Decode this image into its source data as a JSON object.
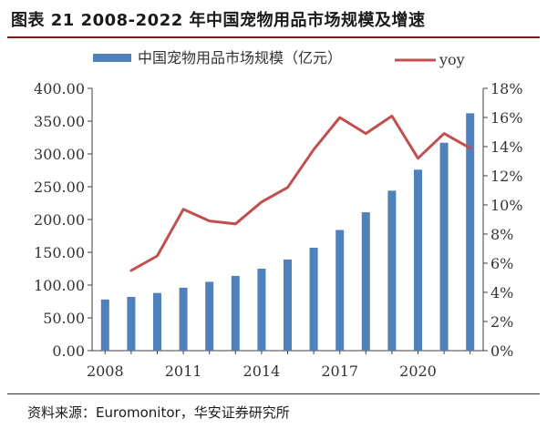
{
  "figure": {
    "title": "图表 21 2008-2022 年中国宠物用品市场规模及增速",
    "source": "资料来源：Euromonitor，华安证券研究所"
  },
  "colors": {
    "bar": "#4f81bd",
    "line": "#c0504d",
    "axis": "#404040",
    "rule": "#7a1f1f"
  },
  "chart_data": {
    "type": "bar",
    "x": [
      2008,
      2009,
      2010,
      2011,
      2012,
      2013,
      2014,
      2015,
      2016,
      2017,
      2018,
      2019,
      2020,
      2021,
      2022
    ],
    "series": [
      {
        "name": "中国宠物用品市场规模（亿元）",
        "type": "bar",
        "axis": "left",
        "values": [
          78,
          82,
          88,
          96,
          105,
          114,
          125,
          139,
          157,
          184,
          211,
          244,
          276,
          317,
          362
        ]
      },
      {
        "name": "yoy",
        "type": "line",
        "axis": "right",
        "values": [
          null,
          5.5,
          6.5,
          9.7,
          8.9,
          8.7,
          10.2,
          11.2,
          13.8,
          16.0,
          14.9,
          16.1,
          13.2,
          14.9,
          13.9
        ]
      }
    ],
    "left_axis": {
      "min": 0,
      "max": 400,
      "step": 50,
      "tick_labels": [
        "0.00",
        "50.00",
        "100.00",
        "150.00",
        "200.00",
        "250.00",
        "300.00",
        "350.00",
        "400.00"
      ]
    },
    "right_axis": {
      "min": 0,
      "max": 18,
      "step": 2,
      "tick_labels": [
        "0%",
        "2%",
        "4%",
        "6%",
        "8%",
        "10%",
        "12%",
        "14%",
        "16%",
        "18%"
      ]
    },
    "x_tick_labels": [
      "2008",
      "2011",
      "2014",
      "2017",
      "2020"
    ],
    "legend": {
      "position": "top"
    },
    "grid": false
  }
}
